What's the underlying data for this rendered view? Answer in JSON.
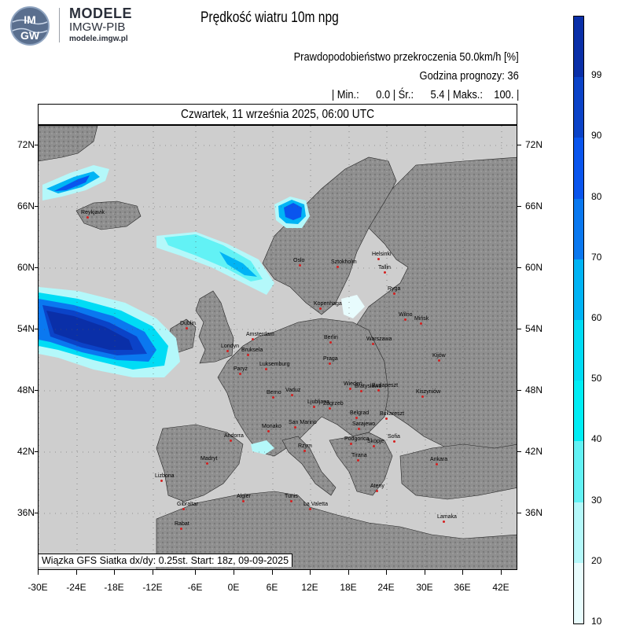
{
  "branding": {
    "line1": "MODELE",
    "line2": "IMGW-PIB",
    "line3": "modele.imgw.pl",
    "logo_text_top": "IM",
    "logo_text_bottom": "GW"
  },
  "title": "Prędkość wiatru 10m npg",
  "info": {
    "line1": "Prawdopodobieństwo przekroczenia 50.0km/h [%]",
    "line2": "Godzina prognozy: 36",
    "line3": "| Min.:      0.0 | Śr.:      5.4 | Maks.:    100. |"
  },
  "date": "Czwartek, 11 września 2025, 06:00 UTC",
  "footer": "Wiązka GFS Siatka dx/dy: 0.25st. Start: 18z, 09-09-2025",
  "lat_labels": [
    "72N",
    "66N",
    "60N",
    "54N",
    "48N",
    "42N",
    "36N"
  ],
  "lon_labels": [
    "-30E",
    "-24E",
    "-18E",
    "-12E",
    "-6E",
    "0E",
    "6E",
    "12E",
    "18E",
    "24E",
    "30E",
    "36E",
    "42E"
  ],
  "colorbar": {
    "labels": [
      "99",
      "90",
      "80",
      "70",
      "60",
      "50",
      "40",
      "30",
      "20",
      "10"
    ],
    "colors": [
      "#0a2fa8",
      "#0b43c8",
      "#0a55ee",
      "#0a78f0",
      "#00b4f5",
      "#00dcf5",
      "#00eef5",
      "#62f2f5",
      "#b4f8fa",
      "#e8fcfd"
    ]
  },
  "cities": [
    {
      "name": "Reykjavik"
    },
    {
      "name": "Oslo"
    },
    {
      "name": "Sztokholm"
    },
    {
      "name": "Helsinki"
    },
    {
      "name": "Tallin"
    },
    {
      "name": "Ryga"
    },
    {
      "name": "Kopenhaga"
    },
    {
      "name": "Wilno"
    },
    {
      "name": "Mińsk"
    },
    {
      "name": "Dublin"
    },
    {
      "name": "Amsterdam"
    },
    {
      "name": "Londyn"
    },
    {
      "name": "Berlin"
    },
    {
      "name": "Warszawa"
    },
    {
      "name": "Bruksela"
    },
    {
      "name": "Luksemburg"
    },
    {
      "name": "Praga"
    },
    {
      "name": "Kijów"
    },
    {
      "name": "Paryż"
    },
    {
      "name": "Wiedeń"
    },
    {
      "name": "Bratysława"
    },
    {
      "name": "Budapeszt"
    },
    {
      "name": "Kiszyniów"
    },
    {
      "name": "Berno"
    },
    {
      "name": "Vaduz"
    },
    {
      "name": "Zagrzeb"
    },
    {
      "name": "Ljubljana"
    },
    {
      "name": "Belgrad"
    },
    {
      "name": "Bukareszt"
    },
    {
      "name": "Monako"
    },
    {
      "name": "San Marino"
    },
    {
      "name": "Sarajewo"
    },
    {
      "name": "Podgorica"
    },
    {
      "name": "Andorra"
    },
    {
      "name": "Rzym"
    },
    {
      "name": "Skopje"
    },
    {
      "name": "Sofia"
    },
    {
      "name": "Tirana"
    },
    {
      "name": "Madryt"
    },
    {
      "name": "Ankara"
    },
    {
      "name": "Ateny"
    },
    {
      "name": "Lizbona"
    },
    {
      "name": "Algier"
    },
    {
      "name": "Tunis"
    },
    {
      "name": "Gibraltar"
    },
    {
      "name": "La Valetta"
    },
    {
      "name": "Lamaka"
    },
    {
      "name": "Rabat"
    }
  ]
}
